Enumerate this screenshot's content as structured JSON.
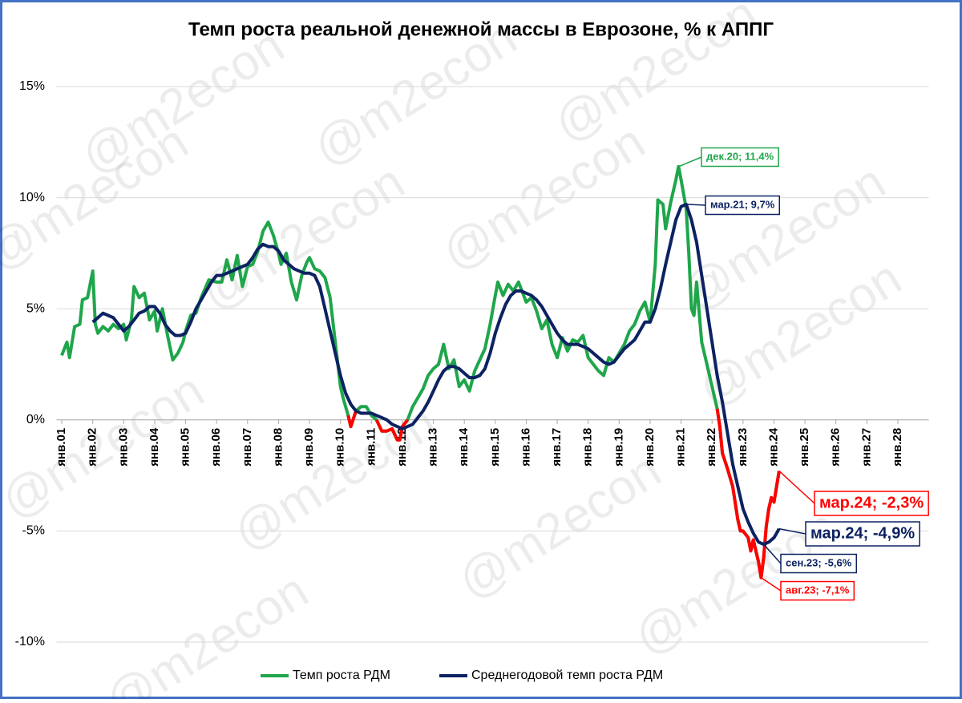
{
  "chart_data": {
    "type": "line",
    "title": "Темп роста реальной денежной массы в Еврозоне, % к АППГ",
    "watermark": "@m2econ",
    "xlim": [
      -2,
      336
    ],
    "xticks": [
      {
        "value": 0,
        "label": "янв.01"
      },
      {
        "value": 12,
        "label": "янв.02"
      },
      {
        "value": 24,
        "label": "янв.03"
      },
      {
        "value": 36,
        "label": "янв.04"
      },
      {
        "value": 48,
        "label": "янв.05"
      },
      {
        "value": 60,
        "label": "янв.06"
      },
      {
        "value": 72,
        "label": "янв.07"
      },
      {
        "value": 84,
        "label": "янв.08"
      },
      {
        "value": 96,
        "label": "янв.09"
      },
      {
        "value": 108,
        "label": "янв.10"
      },
      {
        "value": 120,
        "label": "янв.11"
      },
      {
        "value": 132,
        "label": "янв.12"
      },
      {
        "value": 144,
        "label": "янв.13"
      },
      {
        "value": 156,
        "label": "янв.14"
      },
      {
        "value": 168,
        "label": "янв.15"
      },
      {
        "value": 180,
        "label": "янв.16"
      },
      {
        "value": 192,
        "label": "янв.17"
      },
      {
        "value": 204,
        "label": "янв.18"
      },
      {
        "value": 216,
        "label": "янв.19"
      },
      {
        "value": 228,
        "label": "янв.20"
      },
      {
        "value": 240,
        "label": "янв.21"
      },
      {
        "value": 252,
        "label": "янв.22"
      },
      {
        "value": 264,
        "label": "янв.23"
      },
      {
        "value": 276,
        "label": "янв.24"
      },
      {
        "value": 288,
        "label": "янв.25"
      },
      {
        "value": 300,
        "label": "янв.26"
      },
      {
        "value": 312,
        "label": "янв.27"
      },
      {
        "value": 324,
        "label": "янв.28"
      }
    ],
    "ylim": [
      -10,
      15
    ],
    "yticks": [
      {
        "value": 15,
        "label": "15%"
      },
      {
        "value": 10,
        "label": "10%"
      },
      {
        "value": 5,
        "label": "5%"
      },
      {
        "value": 0,
        "label": "0%"
      },
      {
        "value": -5,
        "label": "-5%"
      },
      {
        "value": -10,
        "label": "-10%"
      }
    ],
    "grid": true,
    "legend": "bottom",
    "series": [
      {
        "name": "Темп роста РДМ",
        "color": "#1fa64b",
        "negative_color": "#ff0000",
        "x": [
          0,
          2,
          3,
          5,
          7,
          8,
          10,
          12,
          13,
          14,
          16,
          18,
          20,
          22,
          24,
          25,
          27,
          28,
          30,
          32,
          34,
          36,
          37,
          39,
          41,
          43,
          45,
          47,
          48,
          50,
          52,
          54,
          57,
          60,
          62,
          64,
          66,
          68,
          70,
          72,
          74,
          76,
          78,
          80,
          82,
          84,
          85,
          87,
          89,
          91,
          93,
          95,
          96,
          98,
          100,
          102,
          104,
          106,
          108,
          109,
          111,
          112,
          114,
          116,
          118,
          120,
          122,
          124,
          126,
          128,
          130,
          131,
          132,
          134,
          136,
          138,
          140,
          142,
          144,
          146,
          148,
          150,
          152,
          154,
          156,
          158,
          160,
          162,
          164,
          166,
          168,
          169,
          171,
          173,
          175,
          177,
          180,
          182,
          184,
          186,
          188,
          190,
          192,
          194,
          196,
          198,
          200,
          202,
          204,
          206,
          208,
          210,
          212,
          214,
          216,
          218,
          220,
          222,
          224,
          226,
          228,
          230,
          231,
          233,
          234,
          236,
          238,
          239,
          240,
          242,
          243,
          244,
          245,
          246,
          248,
          250,
          252,
          254,
          255,
          256,
          258,
          260,
          262,
          263,
          264,
          266,
          267,
          268,
          269,
          270,
          271,
          272,
          273,
          274,
          275,
          276,
          277,
          278
        ],
        "values": [
          2.9,
          3.5,
          2.8,
          4.2,
          4.3,
          5.4,
          5.5,
          6.7,
          4.3,
          3.9,
          4.2,
          4.0,
          4.3,
          4.1,
          4.3,
          3.6,
          4.5,
          6.0,
          5.5,
          5.7,
          4.5,
          4.9,
          4.0,
          5.0,
          3.8,
          2.7,
          3.0,
          3.5,
          4.0,
          4.7,
          4.8,
          5.5,
          6.3,
          6.2,
          6.2,
          7.2,
          6.3,
          7.4,
          6.0,
          6.9,
          7.0,
          7.6,
          8.5,
          8.9,
          8.3,
          7.5,
          7.0,
          7.5,
          6.2,
          5.4,
          6.5,
          7.1,
          7.3,
          6.8,
          6.7,
          6.4,
          5.5,
          3.5,
          1.5,
          1.0,
          0.2,
          -0.3,
          0.4,
          0.6,
          0.6,
          0.2,
          0.0,
          -0.5,
          -0.5,
          -0.4,
          -0.9,
          -0.9,
          -0.3,
          0.0,
          0.6,
          1.0,
          1.4,
          2.0,
          2.3,
          2.5,
          3.4,
          2.3,
          2.7,
          1.5,
          1.8,
          1.3,
          2.2,
          2.7,
          3.2,
          4.3,
          5.6,
          6.2,
          5.6,
          6.1,
          5.8,
          6.2,
          5.3,
          5.5,
          4.9,
          4.1,
          4.5,
          3.4,
          2.8,
          3.7,
          3.1,
          3.6,
          3.5,
          3.8,
          2.8,
          2.5,
          2.2,
          2.0,
          2.8,
          2.6,
          3.0,
          3.4,
          4.0,
          4.3,
          4.9,
          5.3,
          4.4,
          7.0,
          9.9,
          9.7,
          8.6,
          9.8,
          10.8,
          11.4,
          10.8,
          9.5,
          7.5,
          5.0,
          4.7,
          6.2,
          3.5,
          2.5,
          1.5,
          0.5,
          -0.3,
          -1.5,
          -2.2,
          -3.0,
          -4.5,
          -5.0,
          -5.0,
          -5.3,
          -5.9,
          -5.4,
          -5.9,
          -6.4,
          -7.1,
          -6.2,
          -4.8,
          -4.0,
          -3.5,
          -3.7,
          -3.0,
          -2.3
        ]
      },
      {
        "name": "Среднегодовой темп роста РДМ",
        "color": "#0c2262",
        "x": [
          12,
          14,
          16,
          18,
          20,
          22,
          24,
          26,
          28,
          30,
          32,
          34,
          36,
          38,
          40,
          42,
          44,
          46,
          48,
          50,
          52,
          54,
          56,
          58,
          60,
          62,
          64,
          66,
          68,
          70,
          72,
          74,
          76,
          78,
          80,
          82,
          84,
          86,
          88,
          90,
          92,
          94,
          96,
          98,
          100,
          102,
          104,
          106,
          108,
          110,
          112,
          114,
          116,
          118,
          120,
          122,
          124,
          126,
          128,
          130,
          132,
          134,
          136,
          138,
          140,
          142,
          144,
          146,
          148,
          150,
          152,
          154,
          156,
          158,
          160,
          162,
          164,
          166,
          168,
          170,
          172,
          174,
          176,
          178,
          180,
          182,
          184,
          186,
          188,
          190,
          192,
          194,
          196,
          198,
          200,
          202,
          204,
          206,
          208,
          210,
          212,
          214,
          216,
          218,
          220,
          222,
          224,
          226,
          228,
          230,
          232,
          234,
          236,
          238,
          240,
          242,
          244,
          246,
          248,
          250,
          252,
          254,
          256,
          258,
          260,
          262,
          264,
          266,
          268,
          270,
          272,
          274,
          276,
          277,
          278
        ],
        "values": [
          4.4,
          4.6,
          4.8,
          4.7,
          4.6,
          4.3,
          4.0,
          4.2,
          4.5,
          4.8,
          4.9,
          5.1,
          5.1,
          4.8,
          4.3,
          4.0,
          3.8,
          3.8,
          3.9,
          4.4,
          5.0,
          5.4,
          5.8,
          6.2,
          6.5,
          6.5,
          6.6,
          6.7,
          6.8,
          6.9,
          7.0,
          7.3,
          7.7,
          7.9,
          7.8,
          7.8,
          7.6,
          7.2,
          7.0,
          6.8,
          6.7,
          6.6,
          6.6,
          6.5,
          6.0,
          5.0,
          4.0,
          3.0,
          2.0,
          1.2,
          0.7,
          0.4,
          0.3,
          0.3,
          0.3,
          0.2,
          0.1,
          0.0,
          -0.2,
          -0.3,
          -0.4,
          -0.3,
          -0.2,
          0.1,
          0.4,
          0.8,
          1.3,
          1.8,
          2.2,
          2.4,
          2.4,
          2.3,
          2.1,
          1.9,
          1.9,
          2.0,
          2.3,
          3.0,
          3.9,
          4.6,
          5.2,
          5.6,
          5.8,
          5.8,
          5.7,
          5.6,
          5.4,
          5.1,
          4.7,
          4.3,
          3.9,
          3.6,
          3.4,
          3.4,
          3.4,
          3.3,
          3.2,
          3.0,
          2.8,
          2.6,
          2.5,
          2.6,
          2.9,
          3.2,
          3.4,
          3.6,
          4.0,
          4.4,
          4.4,
          5.0,
          5.9,
          7.0,
          8.0,
          9.0,
          9.6,
          9.7,
          9.0,
          8.0,
          6.5,
          5.0,
          3.5,
          2.0,
          0.8,
          -0.6,
          -2.0,
          -3.0,
          -4.0,
          -4.6,
          -5.1,
          -5.5,
          -5.6,
          -5.5,
          -5.3,
          -5.1,
          -4.9
        ]
      }
    ],
    "annotations": [
      {
        "text": "дек.20; 11,4%",
        "series": 0,
        "x": 239
      },
      {
        "text": "мар.21; 9,7%",
        "series": 1,
        "x": 242
      },
      {
        "text": "мар.24; -2,3%",
        "series": 0,
        "x": 278
      },
      {
        "text": "мар.24; -4,9%",
        "series": 1,
        "x": 278
      },
      {
        "text": "сен.23; -5,6%",
        "series": 1,
        "x": 272
      },
      {
        "text": "авг.23; -7,1%",
        "series": 0,
        "x": 271
      }
    ]
  }
}
